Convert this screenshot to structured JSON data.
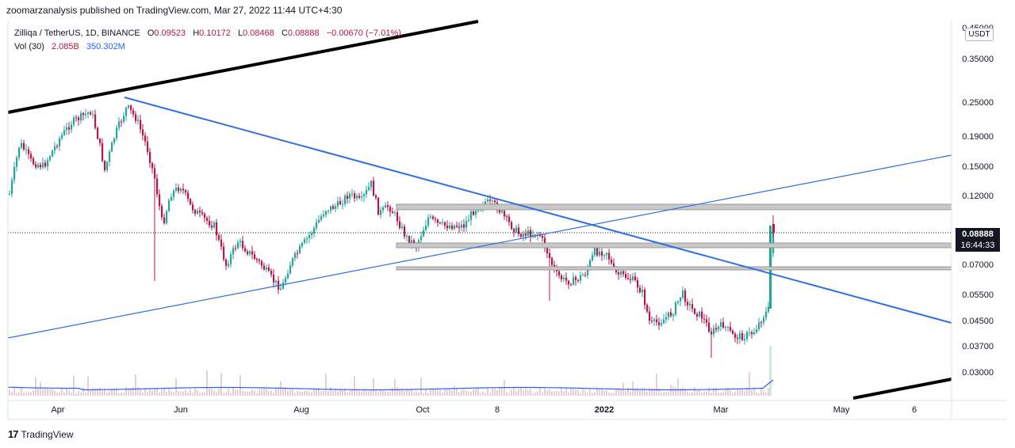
{
  "header": {
    "publish_line": "zoomarzanalysis published on TradingView.com, Mar 27, 2022 11:44 UTC+4:30"
  },
  "legend": {
    "symbol": "Zilliqa / TetherUS, 1D, BINANCE",
    "open_label": "O",
    "open": "0.09523",
    "high_label": "H",
    "high": "0.10172",
    "low_label": "L",
    "low": "0.08468",
    "close_label": "C",
    "close": "0.08888",
    "change": "−0.00670 (−7.01%)",
    "volume_label": "Vol (30)",
    "volume_value": "2.085B",
    "volume_ma": "350.302M"
  },
  "price_axis": {
    "currency": "USDT",
    "ticks": [
      "0.45000",
      "0.35000",
      "0.25000",
      "0.19000",
      "0.15000",
      "0.12000",
      "0.07000",
      "0.05500",
      "0.04500",
      "0.03700",
      "0.03000"
    ],
    "last_price": "0.08888",
    "countdown": "16:44:33"
  },
  "time_axis": {
    "ticks": [
      "Apr",
      "Jun",
      "Aug",
      "Oct",
      "8",
      "2022",
      "Mar",
      "May",
      "6"
    ]
  },
  "footer": {
    "logo_glyph": "17",
    "brand": "TradingView"
  },
  "colors": {
    "up": "#26a69a",
    "down": "#b2174d",
    "trendline_blue": "#2f6fde",
    "trendline_black": "#000000",
    "zone_fill": "#c8c8c8",
    "volume_ma": "#2962ff"
  }
}
